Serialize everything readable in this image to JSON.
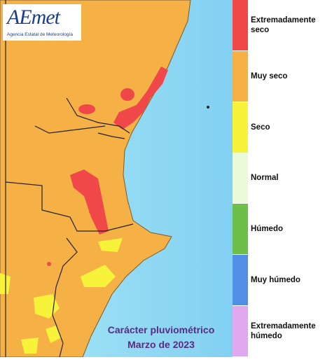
{
  "header": {
    "logo": "AEmet",
    "agency": "Agencia Estatal de Meteorología"
  },
  "legend": [
    {
      "label": "Extremadamente seco",
      "color": "#f04848"
    },
    {
      "label": "Muy seco",
      "color": "#f5b046"
    },
    {
      "label": "Seco",
      "color": "#f7f23a"
    },
    {
      "label": "Normal",
      "color": "#eaf9d8"
    },
    {
      "label": "Húmedo",
      "color": "#6cbf48"
    },
    {
      "label": "Muy húmedo",
      "color": "#4f8fe6"
    },
    {
      "label": "Extremadamente húmedo",
      "color": "#e0a8ef"
    }
  ],
  "title": [
    "Carácter pluviométrico",
    "Marzo de 2023"
  ]
}
